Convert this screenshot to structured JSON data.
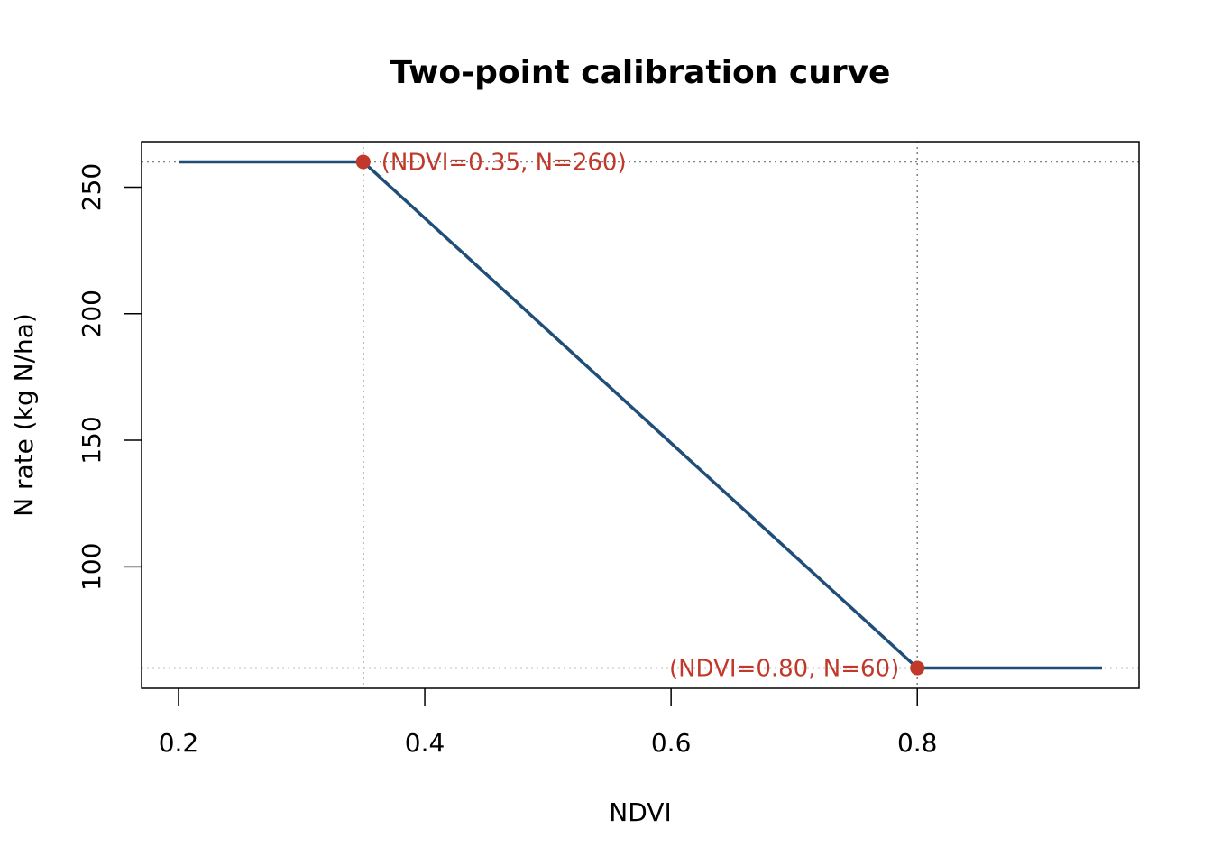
{
  "chart_data": {
    "type": "line",
    "title": "Two-point calibration curve",
    "xlabel": "NDVI",
    "ylabel": "N rate (kg N/ha)",
    "xlim": [
      0.17,
      0.98
    ],
    "ylim": [
      52,
      268
    ],
    "xticks": [
      0.2,
      0.4,
      0.6,
      0.8
    ],
    "xtick_labels": [
      "0.2",
      "0.4",
      "0.6",
      "0.8"
    ],
    "yticks": [
      100,
      150,
      200,
      250
    ],
    "ytick_labels": [
      "100",
      "150",
      "200",
      "250"
    ],
    "grid": false,
    "series": [
      {
        "x": [
          0.2,
          0.35,
          0.8,
          0.95
        ],
        "y": [
          260,
          260,
          60,
          60
        ],
        "color": "#1f4e79"
      }
    ],
    "reference_lines": {
      "x": [
        0.35,
        0.8
      ],
      "y": [
        260,
        60
      ],
      "color": "#808080",
      "style": "dotted"
    },
    "points": [
      {
        "x": 0.35,
        "y": 260,
        "label": "(NDVI=0.35, N=260)",
        "label_side": "right"
      },
      {
        "x": 0.8,
        "y": 60,
        "label": "(NDVI=0.80, N=60)",
        "label_side": "left"
      }
    ],
    "point_color": "#c0392b"
  }
}
